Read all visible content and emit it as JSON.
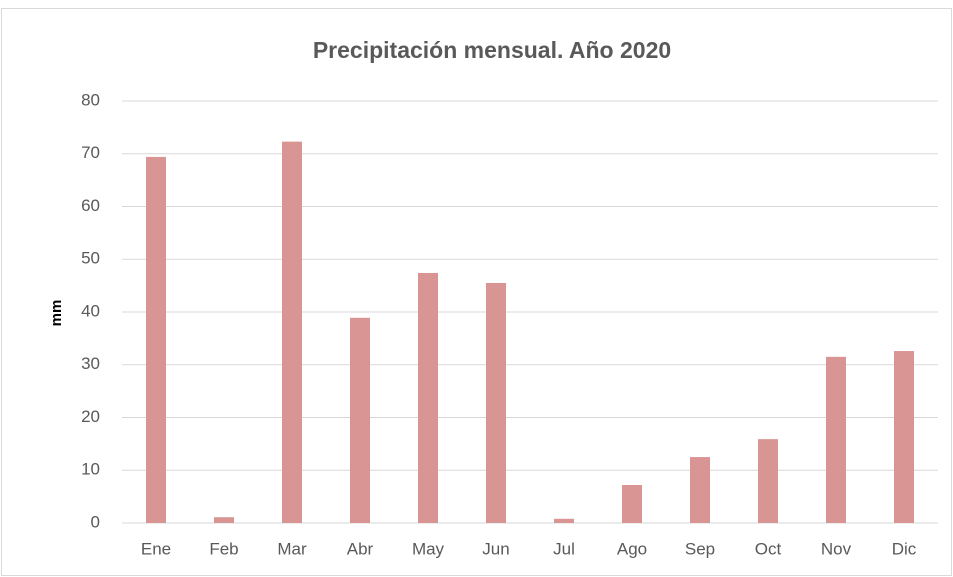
{
  "chart_data": {
    "type": "bar",
    "title": "Precipitación mensual. Año 2020",
    "ylabel": "mm",
    "categories": [
      "Ene",
      "Feb",
      "Mar",
      "Abr",
      "May",
      "Jun",
      "Jul",
      "Ago",
      "Sep",
      "Oct",
      "Nov",
      "Dic"
    ],
    "values": [
      69.4,
      1.1,
      72.3,
      38.9,
      47.4,
      45.5,
      0.8,
      7.2,
      12.5,
      15.9,
      31.5,
      32.6
    ],
    "color": "#d99594",
    "ylim": [
      0,
      80
    ],
    "yticks": [
      0,
      10,
      20,
      30,
      40,
      50,
      60,
      70,
      80
    ],
    "grid": true
  }
}
